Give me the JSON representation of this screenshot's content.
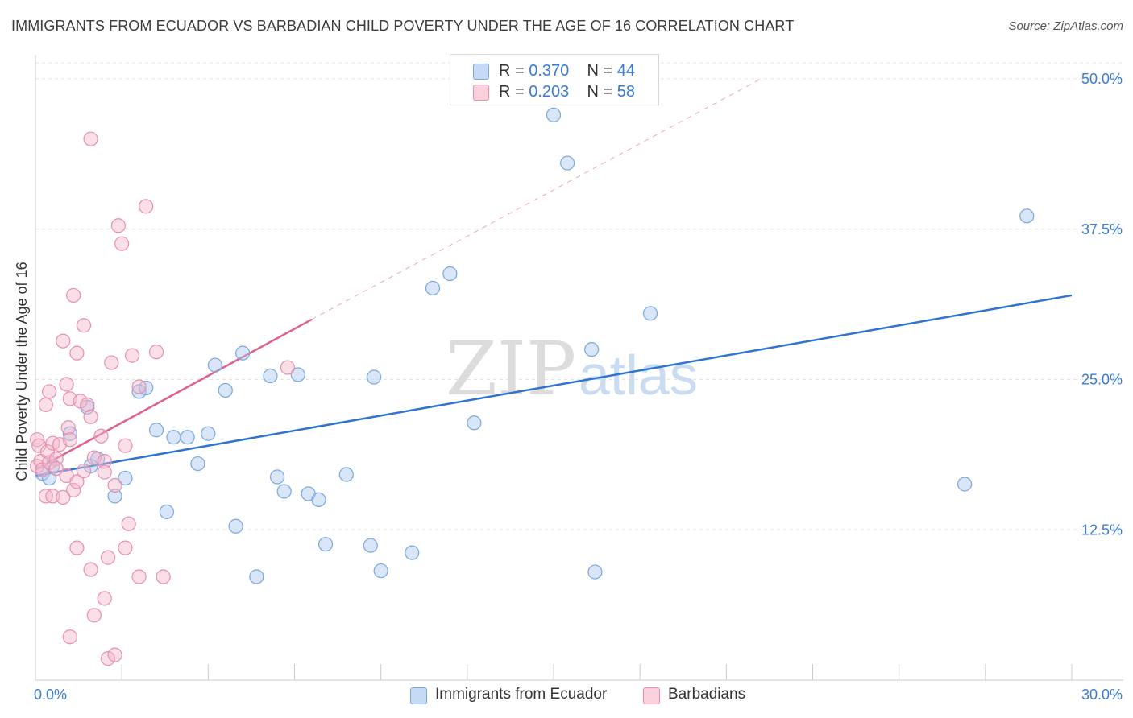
{
  "title": "IMMIGRANTS FROM ECUADOR VS BARBADIAN CHILD POVERTY UNDER THE AGE OF 16 CORRELATION CHART",
  "source": "Source: ZipAtlas.com",
  "watermark": {
    "zip": "ZIP",
    "atlas": "atlas"
  },
  "legend_top": [
    {
      "r_label": "R = ",
      "r_value": "0.370",
      "n_label": "N = ",
      "n_value": "44",
      "color": "#a9c8f0"
    },
    {
      "r_label": "R = ",
      "r_value": "0.203",
      "n_label": "N = ",
      "n_value": "58",
      "color": "#f5b8cb"
    }
  ],
  "legend_bottom": [
    {
      "label": "Immigrants from Ecuador",
      "color": "#a9c8f0"
    },
    {
      "label": "Barbadians",
      "color": "#f5b8cb"
    }
  ],
  "chart_data": {
    "type": "scatter",
    "title": "IMMIGRANTS FROM ECUADOR VS BARBADIAN CHILD POVERTY UNDER THE AGE OF 16 CORRELATION CHART",
    "xlabel": "",
    "ylabel": "Child Poverty Under the Age of 16",
    "xlim": [
      0,
      30
    ],
    "ylim": [
      0,
      51
    ],
    "x_tick_labels": [
      {
        "value": 0,
        "label": "0.0%"
      },
      {
        "value": 30,
        "label": "30.0%"
      }
    ],
    "y_tick_labels": [
      {
        "value": 12.5,
        "label": "12.5%"
      },
      {
        "value": 25,
        "label": "25.0%"
      },
      {
        "value": 37.5,
        "label": "37.5%"
      },
      {
        "value": 50,
        "label": "50.0%"
      }
    ],
    "grid": true,
    "series": [
      {
        "name": "Immigrants from Ecuador",
        "color": "#a9c8f0",
        "stroke": "#7aa7de",
        "line_color": "#2f74d0",
        "points": [
          [
            0.2,
            17.2
          ],
          [
            0.5,
            17.8
          ],
          [
            1.0,
            20.5
          ],
          [
            1.5,
            22.7
          ],
          [
            1.6,
            17.8
          ],
          [
            1.8,
            18.4
          ],
          [
            2.3,
            15.3
          ],
          [
            2.6,
            16.8
          ],
          [
            3.0,
            24.0
          ],
          [
            3.2,
            24.3
          ],
          [
            3.5,
            20.8
          ],
          [
            3.8,
            14.0
          ],
          [
            4.0,
            20.2
          ],
          [
            4.4,
            20.2
          ],
          [
            4.7,
            18.0
          ],
          [
            5.0,
            20.5
          ],
          [
            5.2,
            26.2
          ],
          [
            5.5,
            24.1
          ],
          [
            5.8,
            12.8
          ],
          [
            6.0,
            27.2
          ],
          [
            6.4,
            8.6
          ],
          [
            6.8,
            25.3
          ],
          [
            7.0,
            16.9
          ],
          [
            7.2,
            15.7
          ],
          [
            7.6,
            25.4
          ],
          [
            7.9,
            15.5
          ],
          [
            8.2,
            15.0
          ],
          [
            8.4,
            11.3
          ],
          [
            9.0,
            17.1
          ],
          [
            9.7,
            11.2
          ],
          [
            9.8,
            25.2
          ],
          [
            10.0,
            9.1
          ],
          [
            10.9,
            10.6
          ],
          [
            11.5,
            32.6
          ],
          [
            12.0,
            33.8
          ],
          [
            12.7,
            21.4
          ],
          [
            15.0,
            47.0
          ],
          [
            15.4,
            43.0
          ],
          [
            16.2,
            9.0
          ],
          [
            16.1,
            27.5
          ],
          [
            17.8,
            30.5
          ],
          [
            26.9,
            16.3
          ],
          [
            28.7,
            38.6
          ],
          [
            0.4,
            16.8
          ]
        ],
        "trend": {
          "x0": 0,
          "y0": 17.0,
          "x1": 30,
          "y1": 32.0,
          "dashed_extension": false
        }
      },
      {
        "name": "Barbadians",
        "color": "#f5b8cb",
        "stroke": "#e690ad",
        "line_color": "#e0608a",
        "points": [
          [
            0.05,
            20.0
          ],
          [
            0.05,
            17.8
          ],
          [
            0.1,
            19.5
          ],
          [
            0.15,
            18.2
          ],
          [
            0.2,
            17.5
          ],
          [
            0.3,
            22.9
          ],
          [
            0.3,
            15.3
          ],
          [
            0.35,
            19.0
          ],
          [
            0.4,
            18.1
          ],
          [
            0.4,
            24.0
          ],
          [
            0.5,
            19.7
          ],
          [
            0.5,
            15.3
          ],
          [
            0.6,
            18.4
          ],
          [
            0.6,
            17.6
          ],
          [
            0.7,
            19.6
          ],
          [
            0.8,
            28.2
          ],
          [
            0.8,
            15.2
          ],
          [
            0.9,
            17.0
          ],
          [
            0.9,
            24.6
          ],
          [
            0.95,
            21.0
          ],
          [
            1.0,
            20.0
          ],
          [
            1.0,
            23.4
          ],
          [
            1.1,
            32.0
          ],
          [
            1.1,
            15.8
          ],
          [
            1.2,
            27.2
          ],
          [
            1.2,
            16.5
          ],
          [
            1.3,
            23.2
          ],
          [
            1.4,
            17.4
          ],
          [
            1.4,
            29.5
          ],
          [
            1.5,
            22.9
          ],
          [
            1.6,
            21.9
          ],
          [
            1.6,
            45.0
          ],
          [
            1.7,
            18.5
          ],
          [
            1.9,
            20.3
          ],
          [
            2.0,
            18.2
          ],
          [
            2.0,
            17.3
          ],
          [
            2.3,
            16.2
          ],
          [
            2.2,
            26.4
          ],
          [
            2.4,
            37.8
          ],
          [
            2.5,
            36.3
          ],
          [
            2.6,
            19.5
          ],
          [
            2.8,
            27.0
          ],
          [
            3.0,
            24.4
          ],
          [
            3.2,
            39.4
          ],
          [
            3.5,
            27.3
          ],
          [
            3.7,
            8.6
          ],
          [
            3.0,
            8.6
          ],
          [
            2.7,
            13.0
          ],
          [
            2.6,
            11.0
          ],
          [
            2.1,
            10.2
          ],
          [
            1.6,
            9.2
          ],
          [
            1.2,
            11.0
          ],
          [
            2.0,
            6.8
          ],
          [
            1.7,
            5.4
          ],
          [
            1.0,
            3.6
          ],
          [
            2.1,
            1.8
          ],
          [
            2.3,
            2.1
          ],
          [
            7.3,
            26.0
          ]
        ],
        "trend": {
          "x0": 0,
          "y0": 17.5,
          "x1": 8.0,
          "y1": 30.0,
          "dashed_extension": true,
          "x_end": 21.0,
          "y_end": 50.0
        }
      }
    ]
  }
}
